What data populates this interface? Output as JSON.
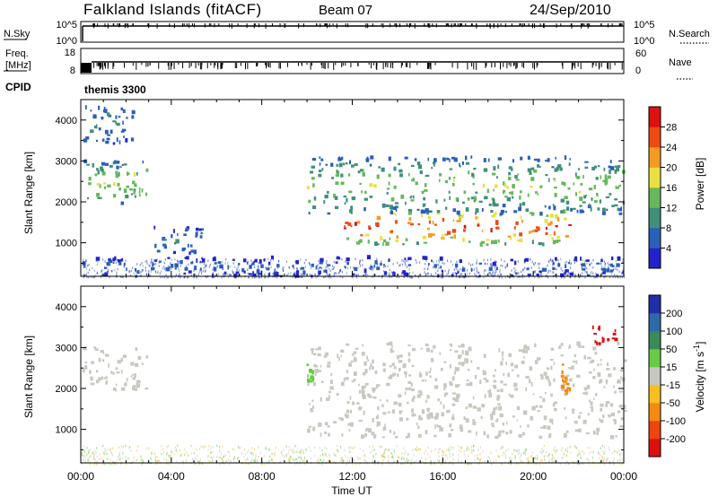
{
  "header": {
    "station": "Falkland Islands (fitACF)",
    "beam": "Beam 07",
    "date": "24/Sep/2010"
  },
  "noise_panel": {
    "left_label": "N.Sky",
    "right_label": "N.Search",
    "left_ticks": [
      "10^5",
      "10^0"
    ],
    "right_ticks": [
      "10^5",
      "10^0"
    ]
  },
  "freq_panel": {
    "left_label_1": "Freq.",
    "left_label_2": "[MHz]",
    "right_label": "Nave",
    "left_ticks": [
      "18",
      "8"
    ],
    "right_ticks": [
      "60",
      "0"
    ]
  },
  "cpid": {
    "label": "CPID",
    "program": "themis 3300"
  },
  "chart_data": [
    {
      "type": "heatmap",
      "title": "",
      "quantity": "Power",
      "ylabel": "Slant Range [km]",
      "colorbar_label": "Power [dB]",
      "colorbar_ticks": [
        4,
        8,
        12,
        16,
        20,
        24,
        28
      ],
      "colorbar_range": [
        0,
        32
      ],
      "xlabel": "Time UT",
      "x_ticks": [
        "00:00",
        "04:00",
        "08:00",
        "12:00",
        "16:00",
        "20:00",
        "00:00"
      ],
      "x_range_hours": [
        0,
        24
      ],
      "y_ticks": [
        1000,
        2000,
        3000,
        4000
      ],
      "ylim": [
        180,
        4500
      ],
      "colors": [
        "#2222cc",
        "#2a60b8",
        "#3f8f7a",
        "#66b85a",
        "#e8e040",
        "#f59a20",
        "#ee4a14",
        "#dd1111"
      ],
      "features": [
        {
          "name": "evening band",
          "t_start": 0.0,
          "t_end": 2.9,
          "range_min": 1950,
          "range_max": 3000,
          "peak_db": 18
        },
        {
          "name": "early far echoes",
          "t_start": 0.1,
          "t_end": 2.3,
          "range_min": 3400,
          "range_max": 4400,
          "peak_db": 10
        },
        {
          "name": "night near echoes",
          "t_start": 3.2,
          "t_end": 5.3,
          "range_min": 700,
          "range_max": 1400,
          "peak_db": 8
        },
        {
          "name": "day band core",
          "t_start": 11.6,
          "t_end": 21.6,
          "range_min": 950,
          "range_max": 1800,
          "peak_db": 30
        },
        {
          "name": "day band upper",
          "t_start": 10.0,
          "t_end": 24.0,
          "range_min": 1700,
          "range_max": 3100,
          "peak_db": 16
        },
        {
          "name": "ground scatter clutter",
          "t_start": 0.0,
          "t_end": 24.0,
          "range_min": 180,
          "range_max": 650,
          "peak_db": 6
        }
      ]
    },
    {
      "type": "heatmap",
      "title": "",
      "quantity": "Velocity",
      "ylabel": "Slant Range [km]",
      "colorbar_label": "Velocity [m s^-1]",
      "colorbar_ticks": [
        200,
        100,
        50,
        15,
        -15,
        -50,
        -100,
        -200
      ],
      "colorbar_range": [
        -250,
        250
      ],
      "xlabel": "Time UT",
      "x_ticks": [
        "00:00",
        "04:00",
        "08:00",
        "12:00",
        "16:00",
        "20:00",
        "00:00"
      ],
      "x_range_hours": [
        0,
        24
      ],
      "y_ticks": [
        1000,
        2000,
        3000,
        4000
      ],
      "ylim": [
        180,
        4500
      ],
      "colors": [
        "#1f2fa8",
        "#2f6aa8",
        "#3a8a5a",
        "#66cc44",
        "#c8c8c0",
        "#f5c020",
        "#f58a10",
        "#ee4410",
        "#dd1010"
      ],
      "features": [
        {
          "name": "evening ground scatter",
          "t_start": 0.0,
          "t_end": 2.9,
          "range_min": 1950,
          "range_max": 3000,
          "velocity": 0
        },
        {
          "name": "day ground scatter",
          "t_start": 10.0,
          "t_end": 24.0,
          "range_min": 800,
          "range_max": 3100,
          "velocity": 0
        },
        {
          "name": "green streak",
          "t_start": 9.9,
          "t_end": 10.3,
          "range_min": 2100,
          "range_max": 2600,
          "velocity": 40
        },
        {
          "name": "orange streaks",
          "t_start": 21.2,
          "t_end": 21.6,
          "range_min": 1800,
          "range_max": 2600,
          "velocity": -60
        },
        {
          "name": "red far echoes",
          "t_start": 22.5,
          "t_end": 23.6,
          "range_min": 3000,
          "range_max": 3500,
          "velocity": -160
        }
      ]
    }
  ]
}
